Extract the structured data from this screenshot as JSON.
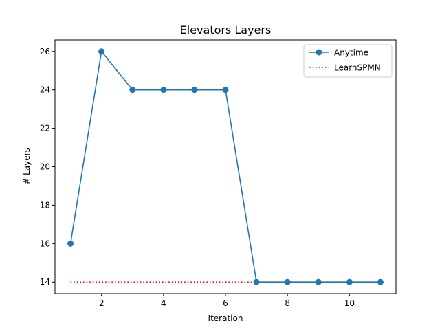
{
  "chart_data": {
    "type": "line",
    "title": "Elevators Layers",
    "xlabel": "Iteration",
    "ylabel": "# Layers",
    "xlim": [
      0.5,
      11.5
    ],
    "ylim": [
      13.4,
      26.6
    ],
    "xticks": [
      2,
      4,
      6,
      8,
      10
    ],
    "yticks": [
      14,
      16,
      18,
      20,
      22,
      24,
      26
    ],
    "grid": false,
    "legend_position": "top-right",
    "series": [
      {
        "name": "Anytime",
        "color": "#1f77b4",
        "style": "solid",
        "marker": "circle",
        "x": [
          1,
          2,
          3,
          4,
          5,
          6,
          7,
          8,
          9,
          10,
          11
        ],
        "y": [
          16,
          26,
          24,
          24,
          24,
          24,
          14,
          14,
          14,
          14,
          14
        ]
      },
      {
        "name": "LearnSPMN",
        "color": "#ff0000",
        "style": "dotted",
        "marker": "none",
        "x": [
          1,
          2,
          3,
          4,
          5,
          6,
          7,
          8,
          9,
          10,
          11
        ],
        "y": [
          14,
          14,
          14,
          14,
          14,
          14,
          14,
          14,
          14,
          14,
          14
        ]
      }
    ]
  }
}
